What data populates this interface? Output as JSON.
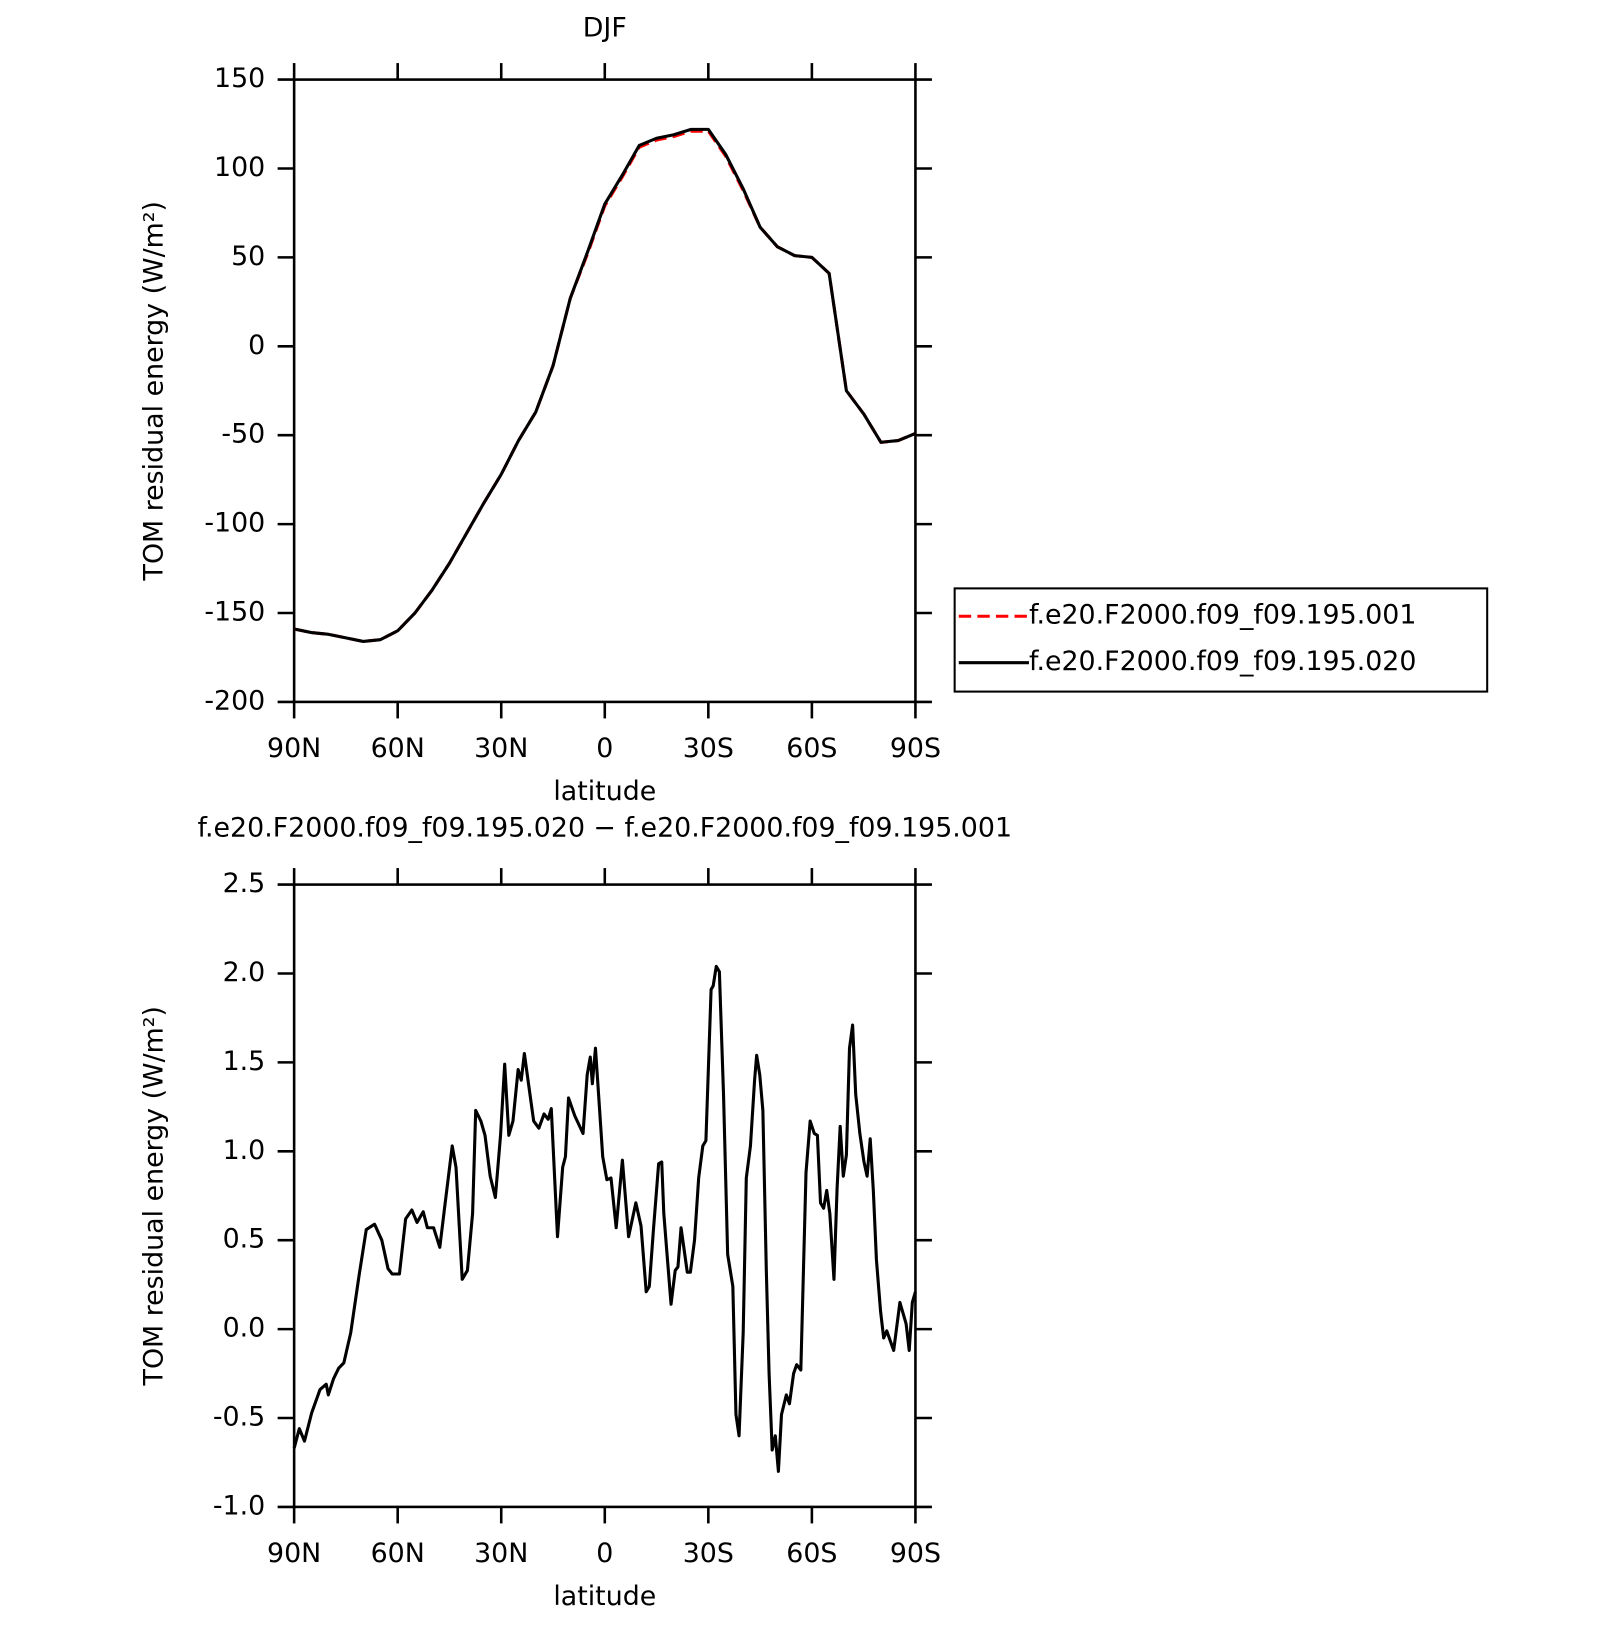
{
  "chart_data": [
    {
      "type": "line",
      "title": "DJF",
      "xlabel": "latitude",
      "ylabel": "TOM residual energy (W/m²)",
      "x": [
        90,
        85,
        80,
        75,
        70,
        65,
        60,
        55,
        50,
        45,
        40,
        35,
        30,
        25,
        20,
        15,
        10,
        5,
        0,
        -5,
        -10,
        -15,
        -20,
        -25,
        -30,
        -35,
        -40,
        -45,
        -50,
        -55,
        -60,
        -65,
        -70,
        -75,
        -80,
        -85,
        -90
      ],
      "series": [
        {
          "name": "f.e20.F2000.f09_f09.195.001",
          "color": "#ff0000",
          "dash": true,
          "values": [
            -159,
            -161,
            -162,
            -164,
            -166,
            -165,
            -160,
            -150,
            -137,
            -122,
            -105,
            -88,
            -72,
            -53,
            -37,
            -11,
            27,
            52,
            79,
            95,
            112,
            116,
            118,
            121,
            121,
            107,
            88,
            67,
            56,
            51,
            50,
            41,
            -25,
            -38,
            -54,
            -53,
            -49
          ]
        },
        {
          "name": "f.e20.F2000.f09_f09.195.020",
          "color": "#000000",
          "dash": false,
          "values": [
            -159,
            -161,
            -162,
            -164,
            -166,
            -165,
            -160,
            -150,
            -137,
            -122,
            -105,
            -88,
            -72,
            -53,
            -37,
            -11,
            27,
            53,
            80,
            96,
            113,
            117,
            119,
            122,
            122,
            108,
            89,
            67,
            56,
            51,
            50,
            41,
            -25,
            -38,
            -54,
            -53,
            -49
          ]
        }
      ],
      "xlim": [
        90,
        -90
      ],
      "xticks": [
        {
          "value": 90,
          "label": "90N"
        },
        {
          "value": 60,
          "label": "60N"
        },
        {
          "value": 30,
          "label": "30N"
        },
        0,
        {
          "value": -30,
          "label": "30S"
        },
        {
          "value": -60,
          "label": "60S"
        },
        {
          "value": -90,
          "label": "90S"
        }
      ],
      "ylim": [
        -200,
        150
      ],
      "yticks": [
        150,
        100,
        50,
        0,
        -50,
        -100,
        -150,
        -200
      ],
      "legend": "outside-right"
    },
    {
      "type": "line",
      "title": "f.e20.F2000.f09_f09.195.020 − f.e20.F2000.f09_f09.195.001",
      "xlabel": "latitude",
      "ylabel": "TOM residual energy (W/m²)",
      "x": [
        90,
        88.5,
        87,
        84.9,
        82.5,
        80.7,
        80.1,
        78.6,
        77.1,
        75.6,
        73.6,
        71.2,
        69.1,
        66.7,
        64.6,
        62.8,
        61.6,
        59.5,
        57.7,
        55.9,
        54.4,
        52.6,
        51.4,
        49.6,
        47.8,
        46.3,
        44.2,
        43.1,
        41.3,
        39.8,
        38.3,
        37.4,
        35.9,
        34.7,
        33.2,
        31.7,
        30.2,
        29.0,
        27.8,
        26.6,
        25.1,
        24.2,
        23.3,
        22.1,
        20.6,
        19.1,
        17.6,
        16.4,
        15.5,
        13.7,
        12.2,
        11.4,
        10.5,
        8.7,
        6.3,
        5.1,
        4.2,
        3.6,
        2.7,
        1.8,
        0.6,
        -0.6,
        -1.8,
        -3.3,
        -5.1,
        -6.9,
        -9.0,
        -10.5,
        -12.0,
        -12.9,
        -14.1,
        -15.6,
        -16.5,
        -17.1,
        -18.0,
        -19.2,
        -20.4,
        -21.2,
        -22.1,
        -23.9,
        -24.8,
        -26.0,
        -27.2,
        -28.4,
        -29.3,
        -30.8,
        -31.4,
        -32.3,
        -33.2,
        -34.4,
        -35.6,
        -37.1,
        -38.0,
        -38.9,
        -40.1,
        -41.0,
        -42.2,
        -43.4,
        -44.0,
        -44.9,
        -45.8,
        -46.8,
        -47.6,
        -48.5,
        -49.4,
        -50.3,
        -51.2,
        -52.6,
        -53.5,
        -54.7,
        -55.6,
        -56.8,
        -58.3,
        -59.5,
        -60.7,
        -61.6,
        -62.5,
        -63.4,
        -64.3,
        -65.2,
        -66.4,
        -67.3,
        -68.2,
        -69.1,
        -70.0,
        -70.9,
        -71.8,
        -72.7,
        -73.9,
        -75.1,
        -76.0,
        -76.9,
        -77.8,
        -78.7,
        -79.9,
        -80.8,
        -81.7,
        -82.6,
        -83.7,
        -85.5,
        -86.4,
        -87.3,
        -88.2,
        -89.1,
        -90.0
      ],
      "values": [
        -0.67,
        -0.56,
        -0.63,
        -0.47,
        -0.34,
        -0.31,
        -0.37,
        -0.28,
        -0.22,
        -0.19,
        -0.02,
        0.3,
        0.56,
        0.59,
        0.5,
        0.34,
        0.31,
        0.31,
        0.62,
        0.67,
        0.6,
        0.66,
        0.57,
        0.57,
        0.46,
        0.7,
        1.03,
        0.91,
        0.28,
        0.33,
        0.65,
        1.23,
        1.17,
        1.09,
        0.86,
        0.74,
        1.09,
        1.49,
        1.09,
        1.17,
        1.46,
        1.4,
        1.55,
        1.38,
        1.17,
        1.13,
        1.21,
        1.18,
        1.24,
        0.52,
        0.91,
        0.97,
        1.3,
        1.2,
        1.1,
        1.43,
        1.53,
        1.38,
        1.58,
        1.32,
        0.97,
        0.84,
        0.85,
        0.57,
        0.95,
        0.52,
        0.71,
        0.58,
        0.21,
        0.24,
        0.56,
        0.93,
        0.94,
        0.65,
        0.43,
        0.14,
        0.33,
        0.35,
        0.57,
        0.32,
        0.32,
        0.5,
        0.85,
        1.03,
        1.06,
        1.91,
        1.93,
        2.04,
        2.01,
        1.32,
        0.42,
        0.24,
        -0.48,
        -0.6,
        -0.02,
        0.85,
        1.03,
        1.4,
        1.54,
        1.43,
        1.23,
        0.33,
        -0.25,
        -0.68,
        -0.6,
        -0.8,
        -0.48,
        -0.37,
        -0.42,
        -0.25,
        -0.2,
        -0.23,
        0.88,
        1.17,
        1.1,
        1.09,
        0.71,
        0.68,
        0.78,
        0.65,
        0.28,
        0.79,
        1.14,
        0.86,
        0.98,
        1.58,
        1.71,
        1.32,
        1.1,
        0.94,
        0.86,
        1.07,
        0.78,
        0.39,
        0.1,
        -0.05,
        -0.01,
        -0.06,
        -0.12,
        0.15,
        0.09,
        0.03,
        -0.12,
        0.15,
        0.21
      ],
      "color": "#000000",
      "xlim": [
        90,
        -90
      ],
      "xticks": [
        {
          "value": 90,
          "label": "90N"
        },
        {
          "value": 60,
          "label": "60N"
        },
        {
          "value": 30,
          "label": "30N"
        },
        0,
        {
          "value": -30,
          "label": "30S"
        },
        {
          "value": -60,
          "label": "60S"
        },
        {
          "value": -90,
          "label": "90S"
        }
      ],
      "ylim": [
        -1,
        2.5
      ],
      "yticks": [
        2.5,
        {
          "value": 2,
          "label": "2.0"
        },
        1.5,
        {
          "value": 1,
          "label": "1.0"
        },
        0.5,
        {
          "value": 0,
          "label": "0.0"
        },
        -0.5,
        {
          "value": -1,
          "label": "-1.0"
        }
      ]
    }
  ]
}
